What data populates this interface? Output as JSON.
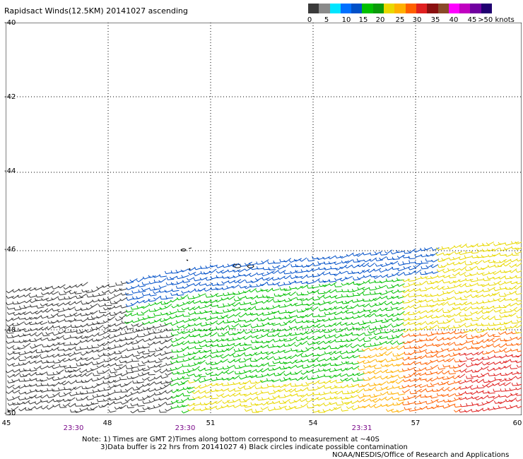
{
  "header": {
    "title": "Rapidsact Winds(12.5KM) 20141027 ascending"
  },
  "color_scale": {
    "colors": [
      "#3a3a3a",
      "#8a8a8a",
      "#00e5ff",
      "#0070ff",
      "#0050c8",
      "#00c000",
      "#0a9a0a",
      "#e8d800",
      "#ffb000",
      "#ff6000",
      "#e02020",
      "#8a1010",
      "#8a4a2a",
      "#ff00ff",
      "#c000c0",
      "#7000a0",
      "#200070"
    ],
    "labels": [
      "0",
      "5",
      "10",
      "15",
      "20",
      "25",
      "30",
      "35",
      "40",
      "45",
      ">50 knots"
    ]
  },
  "axes": {
    "lat_labels": [
      "-40",
      "-42",
      "-44",
      "-46",
      "-48",
      "-50"
    ],
    "lon_labels": [
      "45",
      "48",
      "51",
      "54",
      "57",
      "60"
    ],
    "time_labels": [
      "23:30",
      "23:30",
      "23:31"
    ]
  },
  "notes": {
    "line1": "Note: 1) Times are GMT 2)Times along bottom correspond to measurement at ~40S",
    "line2": "3)Data buffer is 22 hrs from 20141027 4) Black circles indicate possible contamination",
    "credit": "NOAA/NESDIS/Office of Research and Applications"
  }
}
